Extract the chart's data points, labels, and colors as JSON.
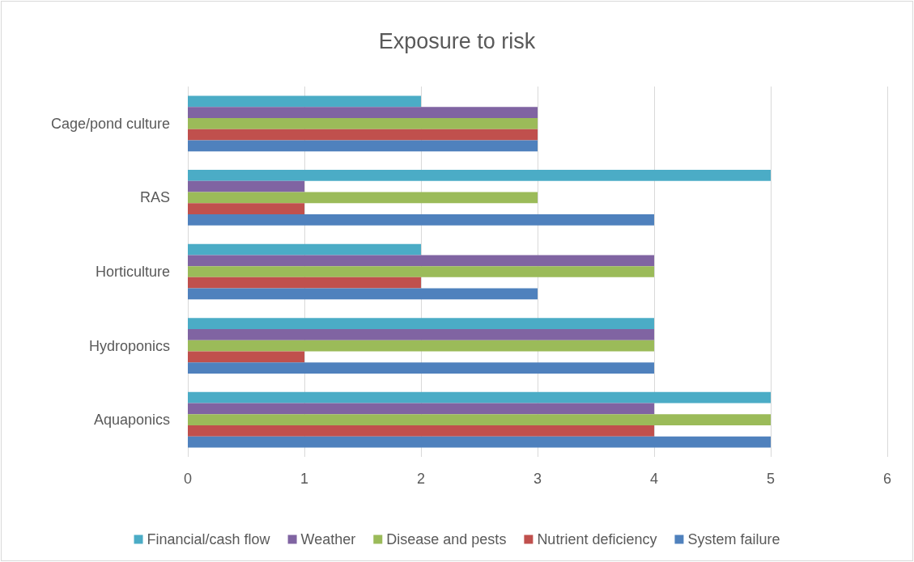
{
  "chart_data": {
    "type": "bar",
    "orientation": "horizontal",
    "title": "Exposure to risk",
    "categories": [
      "Cage/pond culture",
      "RAS",
      "Horticulture",
      "Hydroponics",
      "Aquaponics"
    ],
    "series": [
      {
        "name": "Financial/cash flow",
        "color": "#4bacc6",
        "values": [
          2,
          5,
          2,
          4,
          5
        ]
      },
      {
        "name": "Weather",
        "color": "#8064a2",
        "values": [
          3,
          1,
          4,
          4,
          4
        ]
      },
      {
        "name": "Disease and pests",
        "color": "#9bbb59",
        "values": [
          3,
          3,
          4,
          4,
          5
        ]
      },
      {
        "name": "Nutrient deficiency",
        "color": "#c0504d",
        "values": [
          3,
          1,
          2,
          1,
          4
        ]
      },
      {
        "name": "System failure",
        "color": "#4f81bd",
        "values": [
          3,
          4,
          3,
          4,
          5
        ]
      }
    ],
    "xlim": [
      0,
      6
    ],
    "xticks": [
      0,
      1,
      2,
      3,
      4,
      5,
      6
    ],
    "grid": "x",
    "legend": "bottom"
  }
}
